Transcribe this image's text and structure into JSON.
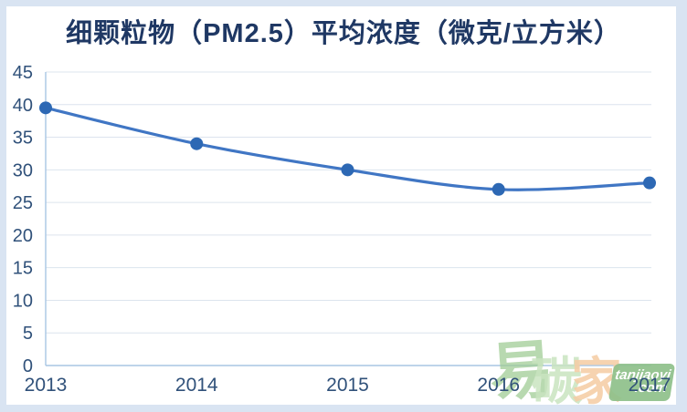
{
  "chart_data": {
    "type": "line",
    "title": "细颗粒物（PM2.5）平均浓度（微克/立方米）",
    "categories": [
      "2013",
      "2014",
      "2015",
      "2016",
      "2017"
    ],
    "values": [
      39.5,
      34,
      30,
      27,
      28
    ],
    "xlabel": "",
    "ylabel": "",
    "ylim": [
      0,
      45
    ],
    "y_ticks": [
      0,
      5,
      10,
      15,
      20,
      25,
      30,
      35,
      40,
      45
    ],
    "grid": true,
    "legend": "none",
    "smooth": true,
    "marker": "circle"
  },
  "colors": {
    "title": "#1F3864",
    "axis_label": "#30517A",
    "line": "#4076C4",
    "marker": "#2D68B4",
    "gridline": "#DCE4EE",
    "axis_line": "#A9C6E4",
    "frame_border": "#D9E4F2",
    "background": "#FFFFFF",
    "watermark_green_dark": "#9ECB92",
    "watermark_green_light": "#C9E4C0",
    "watermark_orange": "#F5CDA6",
    "watermark_badge": "#90C18B",
    "watermark_text": "#FFFFFF"
  },
  "watermark": {
    "char_yi": "易",
    "char_tan": "碳",
    "char_jia": "家",
    "badge_line1": "tanjiaoyi",
    "badge_line2": ".com"
  }
}
